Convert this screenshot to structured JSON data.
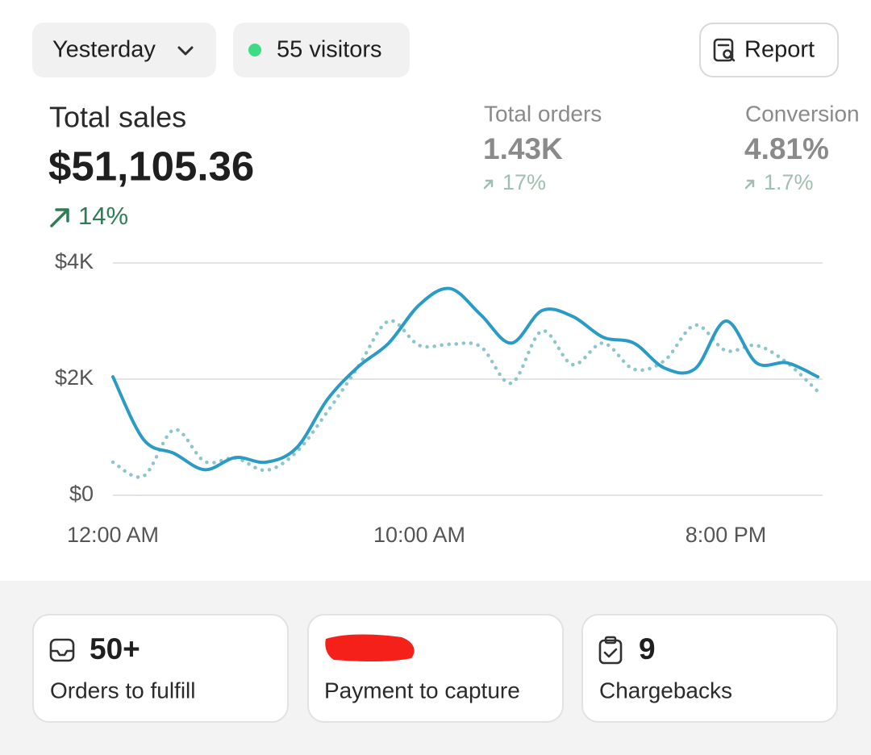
{
  "toolbar": {
    "date_filter": "Yesterday",
    "visitors": "55 visitors",
    "report": "Report"
  },
  "metrics": {
    "total_sales": {
      "label": "Total sales",
      "value": "$51,105.36",
      "change": "14%"
    },
    "total_orders": {
      "label": "Total orders",
      "value": "1.43K",
      "change": "17%"
    },
    "conversion": {
      "label": "Conversion",
      "value": "4.81%",
      "change": "1.7%"
    }
  },
  "chart_data": {
    "type": "line",
    "categories": [
      "12:00 AM",
      null,
      null,
      null,
      null,
      null,
      null,
      null,
      null,
      null,
      "10:00 AM",
      null,
      null,
      null,
      null,
      null,
      null,
      null,
      null,
      null,
      "8:00 PM",
      null,
      null,
      null
    ],
    "series": [
      {
        "color": "#8cc6cc",
        "line_style": "dotted",
        "values": [
          570,
          330,
          1130,
          580,
          640,
          430,
          750,
          1440,
          2210,
          3000,
          2580,
          2600,
          2560,
          1930,
          2830,
          2250,
          2620,
          2170,
          2320,
          2930,
          2490,
          2580,
          2280,
          1790
        ]
      },
      {
        "color": "#2a9bc4",
        "line_style": "solid",
        "values": [
          2040,
          960,
          720,
          440,
          650,
          570,
          820,
          1650,
          2210,
          2620,
          3280,
          3560,
          3110,
          2620,
          3180,
          3080,
          2720,
          2620,
          2190,
          2180,
          3000,
          2280,
          2280,
          2040
        ]
      }
    ],
    "ylim": [
      0,
      4000
    ],
    "yticks": [
      {
        "value": 0,
        "label": "$0"
      },
      {
        "value": 2000,
        "label": "$2K"
      },
      {
        "value": 4000,
        "label": "$4K"
      }
    ],
    "grid": true
  },
  "cards": [
    {
      "value": "50+",
      "label": "Orders to fulfill"
    },
    {
      "label": "Payment to capture"
    },
    {
      "value": "9",
      "label": "Chargebacks"
    }
  ]
}
